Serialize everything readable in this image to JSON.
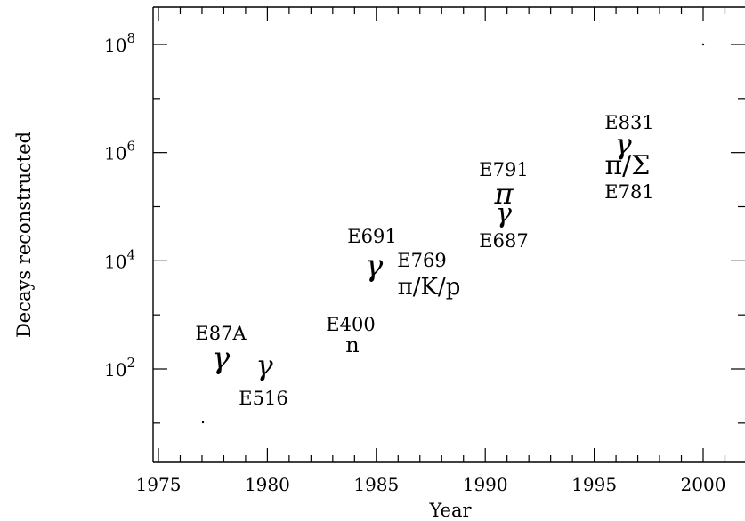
{
  "chart_data": {
    "type": "scatter",
    "xlabel": "Year",
    "ylabel": "Decays reconstructed",
    "xlim": [
      1974.6,
      2002
    ],
    "ylim_log10": [
      0.6,
      9
    ],
    "log_y": true,
    "x_ticks": [
      "1975",
      "1980",
      "1985",
      "1990",
      "1995",
      "2000"
    ],
    "x_tick_values": [
      1975,
      1980,
      1985,
      1990,
      1995,
      2000
    ],
    "y_ticks": [
      {
        "base": "10",
        "exp": "2",
        "value": 2
      },
      {
        "base": "10",
        "exp": "4",
        "value": 4
      },
      {
        "base": "10",
        "exp": "6",
        "value": 6
      },
      {
        "base": "10",
        "exp": "8",
        "value": 8
      }
    ],
    "grid": false,
    "points": [
      {
        "experiment": "E87A",
        "year": 1978,
        "log10_decays": 2.2,
        "symbol": "γ"
      },
      {
        "experiment": "E516",
        "year": 1979.8,
        "log10_decays": 2.1,
        "symbol": "γ"
      },
      {
        "experiment": "E400",
        "year": 1984,
        "log10_decays": 2.4,
        "symbol": "n"
      },
      {
        "experiment": "E691",
        "year": 1985,
        "log10_decays": 3.8,
        "symbol": "γ"
      },
      {
        "experiment": "E769",
        "year": 1987,
        "log10_decays": 3.5,
        "symbol": "π/K/p"
      },
      {
        "experiment": "E791",
        "year": 1991,
        "log10_decays": 5.1,
        "symbol": "π"
      },
      {
        "experiment": "E687",
        "year": 1991,
        "log10_decays": 4.9,
        "symbol": "γ"
      },
      {
        "experiment": "E831",
        "year": 1996.4,
        "log10_decays": 6.2,
        "symbol": "γ"
      },
      {
        "experiment": "E781",
        "year": 1997,
        "log10_decays": 5.8,
        "symbol": "π/Σ"
      }
    ]
  }
}
